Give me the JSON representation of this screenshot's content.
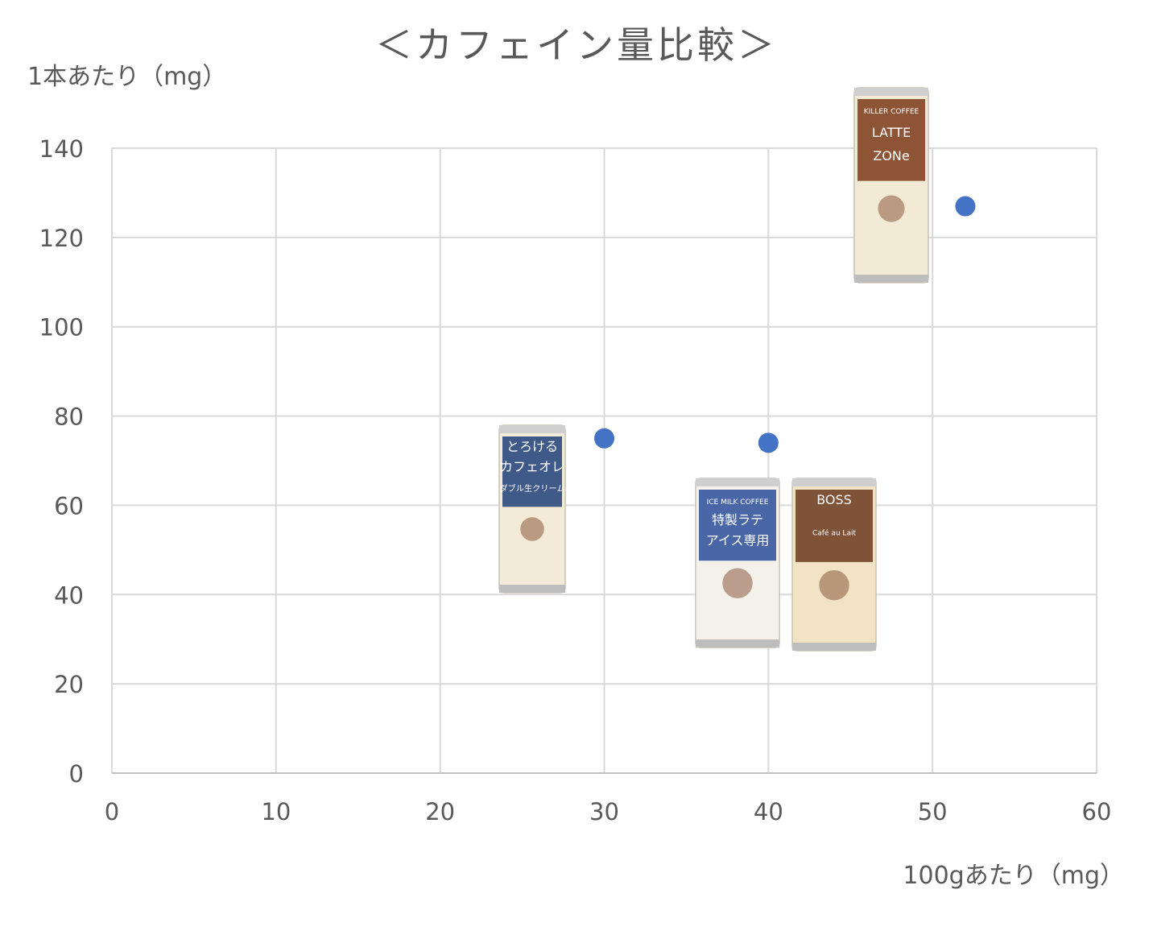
{
  "chart_data": {
    "type": "scatter",
    "title": "＜カフェイン量比較＞",
    "xlabel": "100gあたり（mg）",
    "ylabel": "1本あたり（mg）",
    "xlim": [
      0,
      60
    ],
    "ylim": [
      0,
      140
    ],
    "xticks": [
      0,
      10,
      20,
      30,
      40,
      50,
      60
    ],
    "yticks": [
      0,
      20,
      40,
      60,
      80,
      100,
      120,
      140
    ],
    "grid": true,
    "marker_color": "#4472C4",
    "points": [
      {
        "x": 30,
        "y": 75
      },
      {
        "x": 40,
        "y": 74
      },
      {
        "x": 52,
        "y": 127
      }
    ],
    "product_images": [
      {
        "name": "can-cafe-au-lait-icon",
        "lines": [
          "とろける",
          "カフェオレ",
          "ダブル生クリーム"
        ],
        "color": "#1f3f7a"
      },
      {
        "name": "can-iced-latte-icon",
        "lines": [
          "ICE MILK COFFEE",
          "特製ラテ",
          "アイス専用"
        ],
        "color": "#2a4f9a"
      },
      {
        "name": "can-boss-cafe-au-lait-icon",
        "lines": [
          "BOSS",
          "Café au Lait"
        ],
        "color": "#6b3a1e"
      },
      {
        "name": "can-killer-coffee-icon",
        "lines": [
          "KILLER COFFEE",
          "LATTE",
          "ZONe"
        ],
        "color": "#7a3a1a"
      }
    ]
  }
}
